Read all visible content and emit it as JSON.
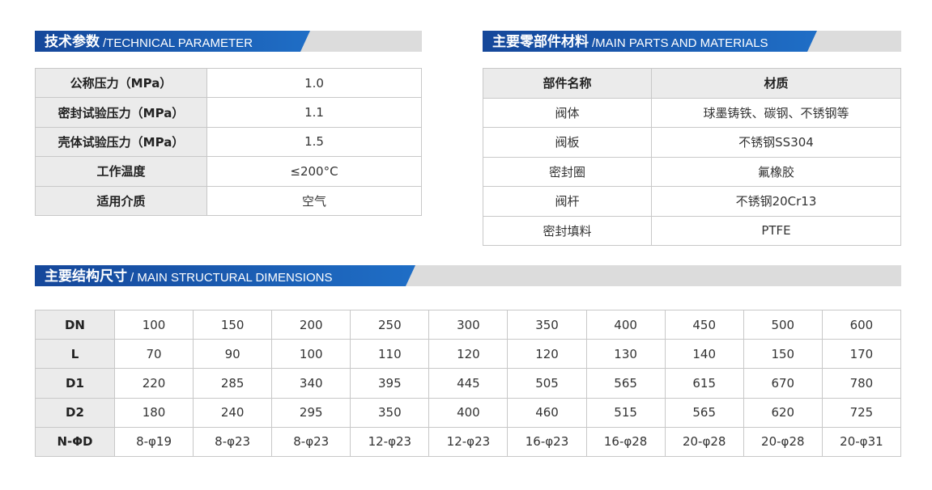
{
  "technical": {
    "title_zh": "技术参数",
    "title_en": "/TECHNICAL PARAMETER",
    "rows": [
      [
        "公称压力（MPa）",
        "1.0"
      ],
      [
        "密封试验压力（MPa）",
        "1.1"
      ],
      [
        "壳体试验压力（MPa）",
        "1.5"
      ],
      [
        "工作温度",
        "≤200°C"
      ],
      [
        "适用介质",
        "空气"
      ]
    ]
  },
  "parts": {
    "title_zh": "主要零部件材料",
    "title_en": "/MAIN PARTS AND MATERIALS",
    "headers": [
      "部件名称",
      "材质"
    ],
    "rows": [
      [
        "阀体",
        "球墨铸铁、碳钢、不锈钢等"
      ],
      [
        "阀板",
        "不锈钢SS304"
      ],
      [
        "密封圈",
        "氟橡胶"
      ],
      [
        "阀杆",
        "不锈钢20Cr13"
      ],
      [
        "密封填料",
        "PTFE"
      ]
    ]
  },
  "dimensions": {
    "title_zh": "主要结构尺寸",
    "title_en": "/ MAIN STRUCTURAL DIMENSIONS",
    "rows": [
      [
        "DN",
        "100",
        "150",
        "200",
        "250",
        "300",
        "350",
        "400",
        "450",
        "500",
        "600"
      ],
      [
        "L",
        "70",
        "90",
        "100",
        "110",
        "120",
        "120",
        "130",
        "140",
        "150",
        "170"
      ],
      [
        "D1",
        "220",
        "285",
        "340",
        "395",
        "445",
        "505",
        "565",
        "615",
        "670",
        "780"
      ],
      [
        "D2",
        "180",
        "240",
        "295",
        "350",
        "400",
        "460",
        "515",
        "565",
        "620",
        "725"
      ],
      [
        "N-ΦD",
        "8-φ19",
        "8-φ23",
        "8-φ23",
        "12-φ23",
        "12-φ23",
        "16-φ23",
        "16-φ28",
        "20-φ28",
        "20-φ28",
        "20-φ31"
      ]
    ]
  }
}
